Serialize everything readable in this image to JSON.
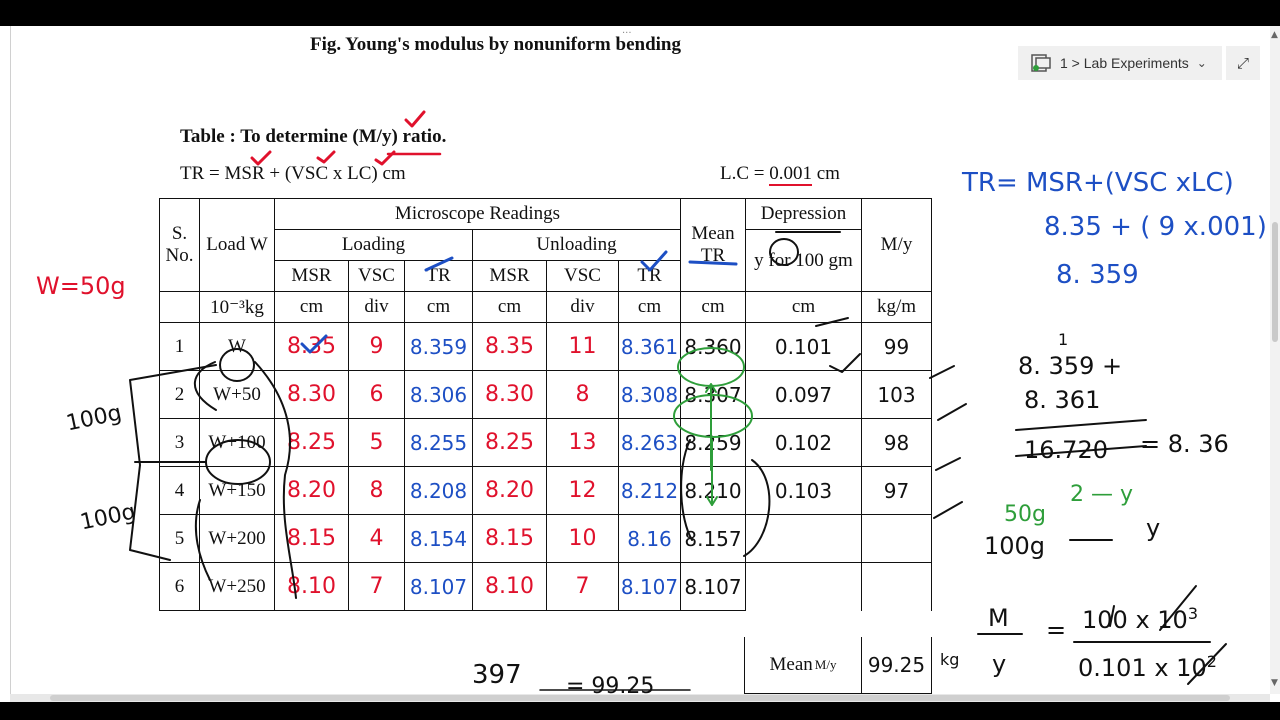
{
  "window": {
    "grip": "···",
    "breadcrumb": "1 > Lab Experiments"
  },
  "doc": {
    "fig_caption": "Fig.    Young's modulus by nonuniform bending",
    "table_title": "Table  : To determine (M/y) ratio.",
    "formula": "TR = MSR + (VSC x LC) cm",
    "lc_label": "L.C = ",
    "lc_value": "0.001",
    "lc_unit": " cm"
  },
  "table": {
    "h_sno": "S. No.",
    "h_load": "Load W",
    "h_micro": "Microscope Readings",
    "h_loading": "Loading",
    "h_unloading": "Unloading",
    "h_mean": "Mean TR",
    "h_depr": "Depression",
    "h_depr2": "y for 100 gm",
    "h_my": "M/y",
    "sub": [
      "MSR",
      "VSC",
      "TR",
      "MSR",
      "VSC",
      "TR"
    ],
    "units": [
      "10⁻³kg",
      "cm",
      "div",
      "cm",
      "cm",
      "div",
      "cm",
      "cm",
      "cm",
      "kg/m"
    ],
    "rows": [
      {
        "sno": "1",
        "load": "W",
        "msr_l": "8.35",
        "vsc_l": "9",
        "tr_l": "8.359",
        "msr_u": "8.35",
        "vsc_u": "11",
        "tr_u": "8.361",
        "mean": "8.360",
        "depr": "0.101",
        "my": "99"
      },
      {
        "sno": "2",
        "load": "W+50",
        "msr_l": "8.30",
        "vsc_l": "6",
        "tr_l": "8.306",
        "msr_u": "8.30",
        "vsc_u": "8",
        "tr_u": "8.308",
        "mean": "8.307",
        "depr": "0.097",
        "my": "103"
      },
      {
        "sno": "3",
        "load": "W+100",
        "msr_l": "8.25",
        "vsc_l": "5",
        "tr_l": "8.255",
        "msr_u": "8.25",
        "vsc_u": "13",
        "tr_u": "8.263",
        "mean": "8.259",
        "depr": "0.102",
        "my": "98"
      },
      {
        "sno": "4",
        "load": "W+150",
        "msr_l": "8.20",
        "vsc_l": "8",
        "tr_l": "8.208",
        "msr_u": "8.20",
        "vsc_u": "12",
        "tr_u": "8.212",
        "mean": "8.210",
        "depr": "0.103",
        "my": "97"
      },
      {
        "sno": "5",
        "load": "W+200",
        "msr_l": "8.15",
        "vsc_l": "4",
        "tr_l": "8.154",
        "msr_u": "8.15",
        "vsc_u": "10",
        "tr_u": "8.16",
        "mean": "8.157",
        "depr": "",
        "my": ""
      },
      {
        "sno": "6",
        "load": "W+250",
        "msr_l": "8.10",
        "vsc_l": "7",
        "tr_l": "8.107",
        "msr_u": "8.10",
        "vsc_u": "7",
        "tr_u": "8.107",
        "mean": "8.107",
        "depr": "",
        "my": ""
      }
    ],
    "mean_label": "Mean",
    "mean_frac": "M/y",
    "mean_value": "99.25"
  },
  "notes": {
    "w": "W=50g",
    "tr1": "TR= MSR+(VSC xLC)",
    "tr2": "8.35 + ( 9 x.001)",
    "tr3": "8. 359",
    "add1": "8. 359 +",
    "add2": "8. 361",
    "add_sum": "16.720",
    "add_eq": "= 8. 36",
    "g50": "50g",
    "y2": "2 — y",
    "g100": "100g",
    "y": "y",
    "frac_m": "M",
    "frac_y": "y",
    "eq": "=",
    "num": "100 x 10",
    "num_exp": "3",
    "den": "0.101 x 10",
    "den_exp": "2",
    "kg": "kg",
    "sum": "397",
    "sum_eq": "= 99.25",
    "b100a": "100g",
    "b100b": "100g",
    "one": "1"
  }
}
